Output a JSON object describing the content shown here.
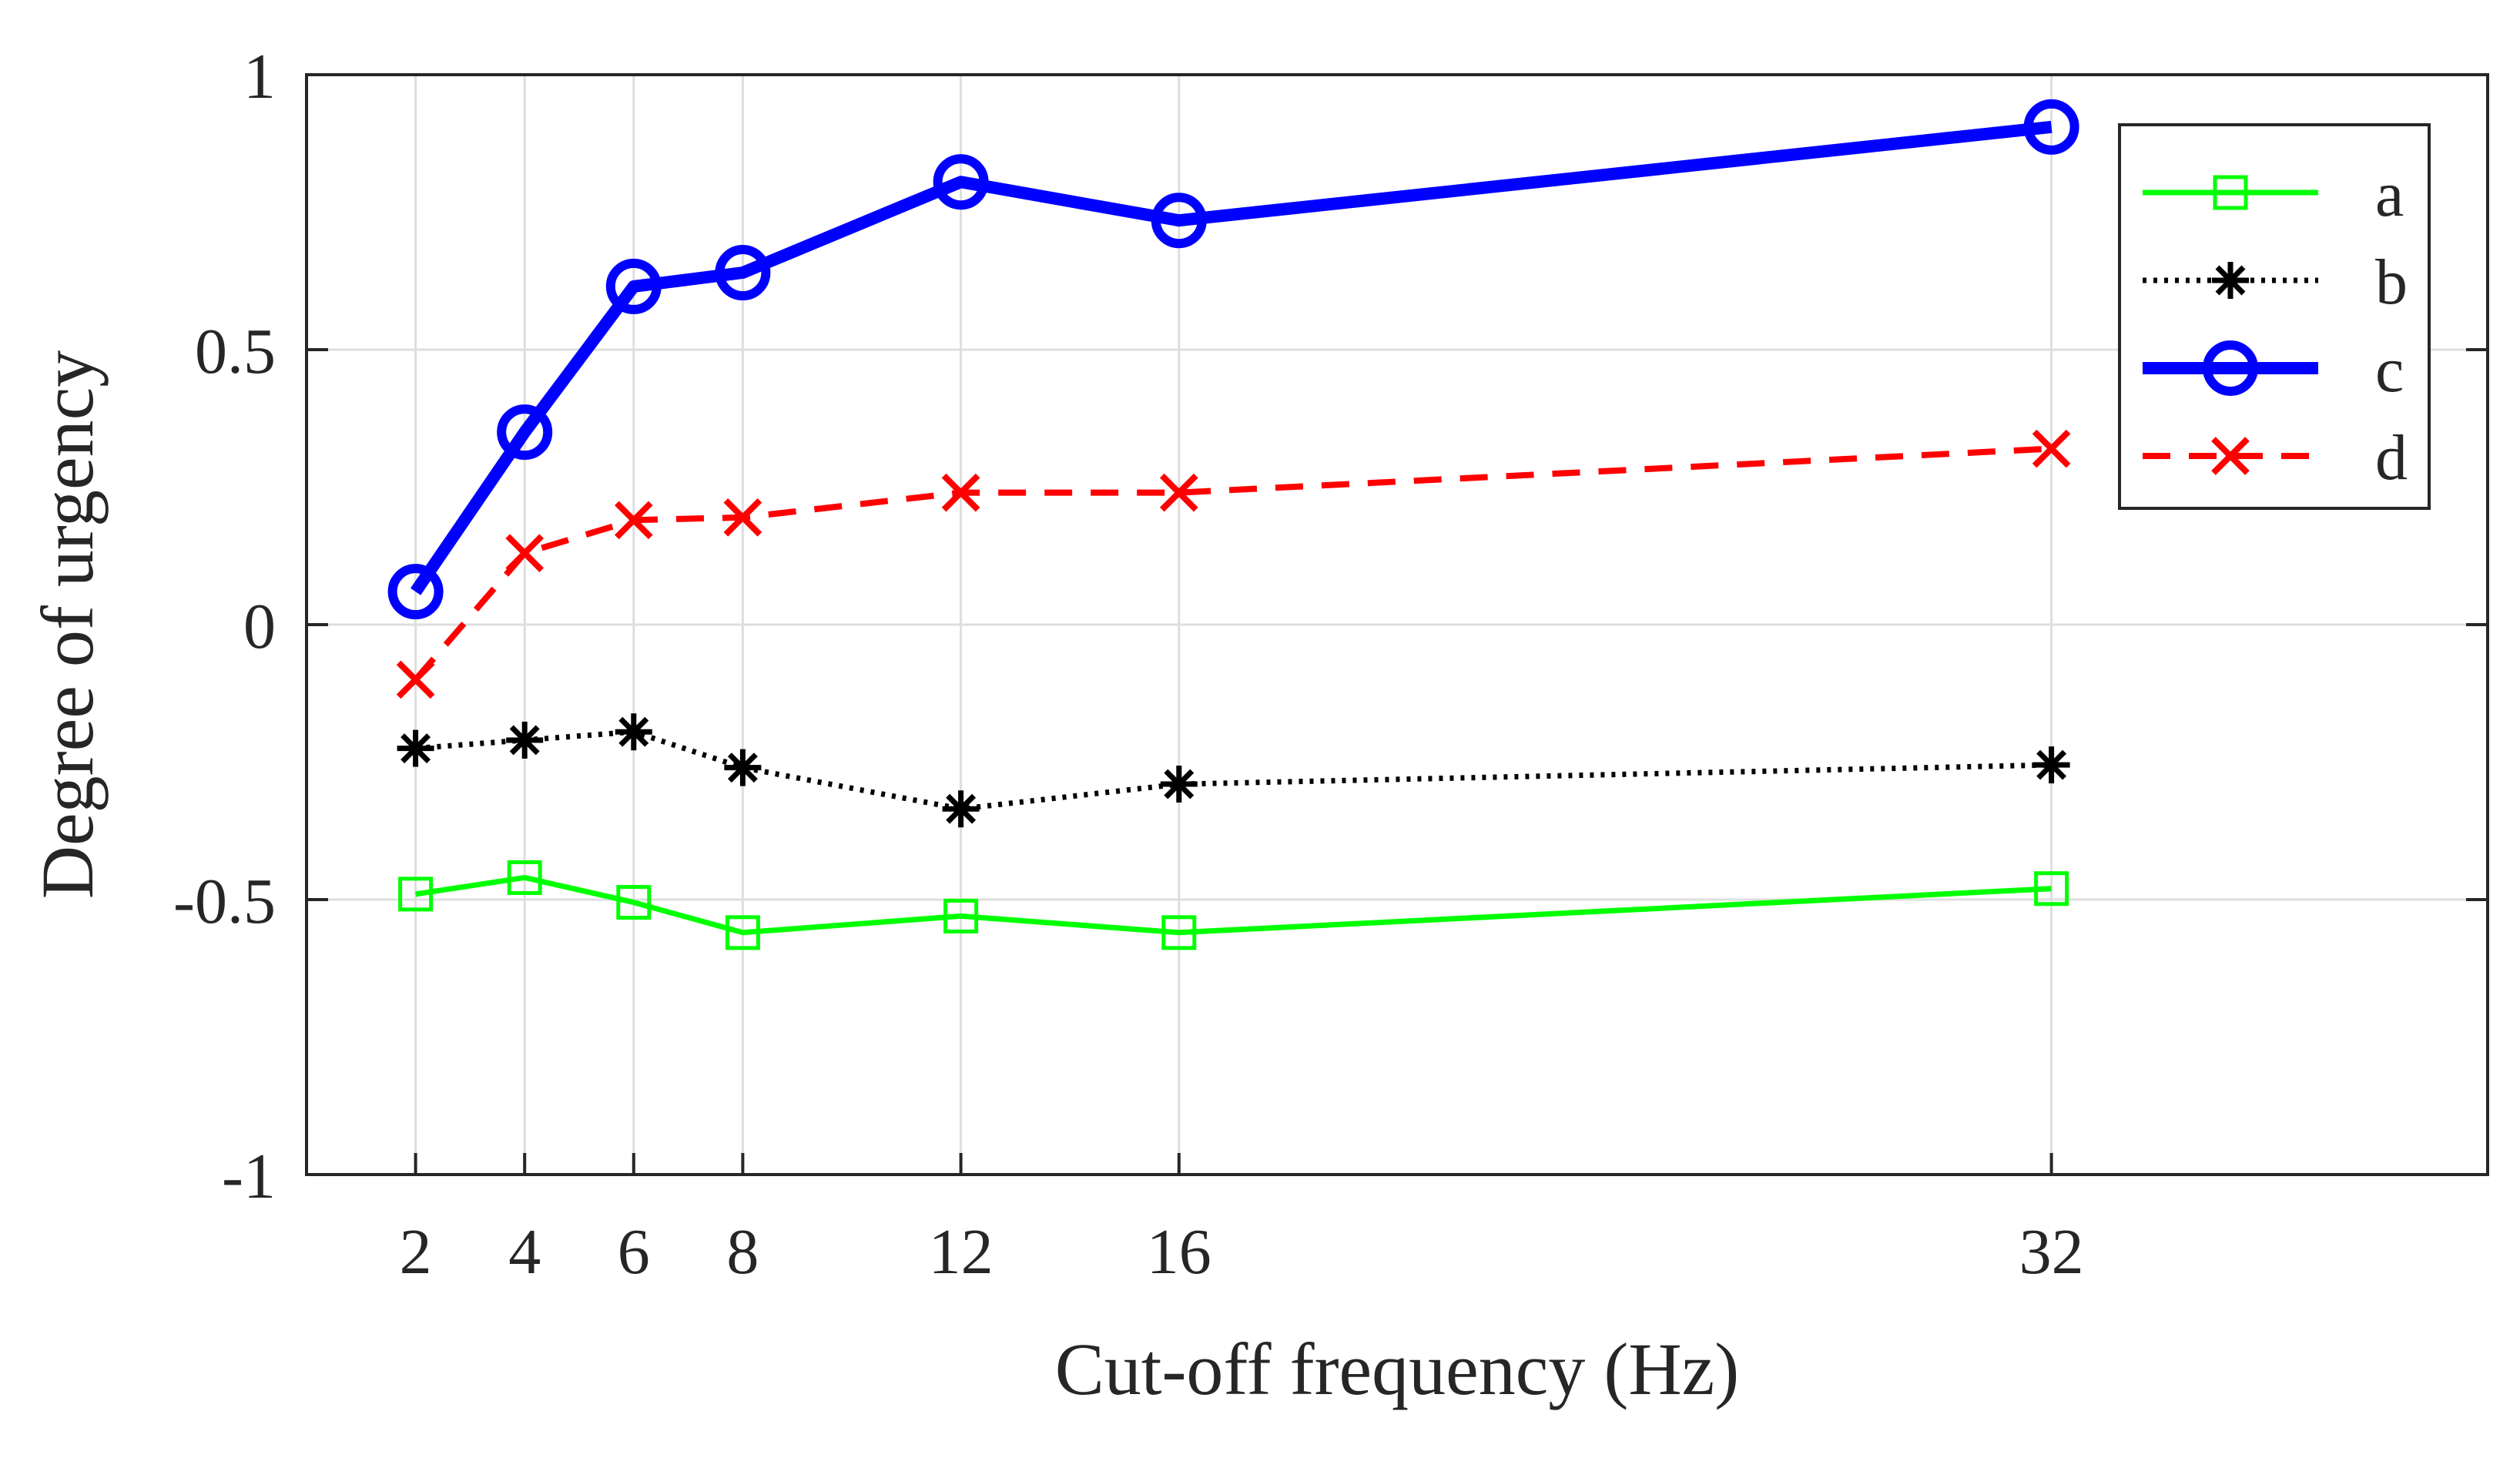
{
  "chart_data": {
    "type": "line",
    "title": "",
    "xlabel": "Cut-off frequency (Hz)",
    "ylabel": "Degree of urgency",
    "x": [
      2,
      4,
      6,
      8,
      12,
      16,
      32
    ],
    "xlim": [
      0,
      40
    ],
    "ylim": [
      -1,
      1
    ],
    "xticks": [
      2,
      4,
      6,
      8,
      12,
      16,
      32
    ],
    "xtick_labels": [
      "2",
      "4",
      "6",
      "8",
      "12",
      "16",
      "32"
    ],
    "yticks": [
      -1,
      -0.5,
      0,
      0.5,
      1
    ],
    "ytick_labels": [
      "-1",
      "-0.5",
      "0",
      "0.5",
      "1"
    ],
    "grid": true,
    "legend_position": "top-right",
    "series": [
      {
        "name": "a",
        "color": "#00ff00",
        "marker": "square",
        "line_style": "solid",
        "values": [
          -0.49,
          -0.46,
          -0.505,
          -0.56,
          -0.53,
          -0.56,
          -0.48
        ]
      },
      {
        "name": "b",
        "color": "#000000",
        "marker": "asterisk",
        "line_style": "dotted",
        "values": [
          -0.225,
          -0.21,
          -0.195,
          -0.26,
          -0.335,
          -0.29,
          -0.255
        ]
      },
      {
        "name": "c",
        "color": "#0000ff",
        "marker": "circle",
        "line_style": "solid-thick",
        "values": [
          0.06,
          0.35,
          0.615,
          0.64,
          0.805,
          0.735,
          0.905
        ]
      },
      {
        "name": "d",
        "color": "#ff0000",
        "marker": "x",
        "line_style": "dashed",
        "values": [
          -0.1,
          0.13,
          0.19,
          0.195,
          0.24,
          0.24,
          0.32
        ]
      }
    ]
  }
}
